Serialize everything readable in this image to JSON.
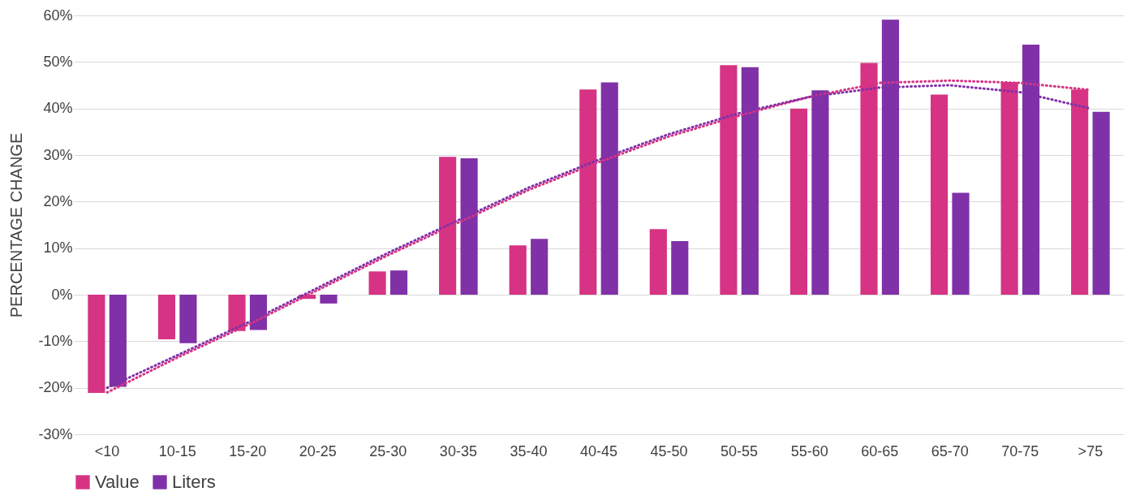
{
  "chart_data": {
    "type": "bar",
    "ylabel": "PERCENTAGE CHANGE",
    "categories": [
      "<10",
      "10-15",
      "15-20",
      "20-25",
      "25-30",
      "30-35",
      "35-40",
      "40-45",
      "45-50",
      "50-55",
      "55-60",
      "60-65",
      "65-70",
      "70-75",
      ">75"
    ],
    "series": [
      {
        "name": "Value",
        "color": "#d63384",
        "values": [
          -21.1,
          -9.6,
          -7.8,
          -0.9,
          5.0,
          29.6,
          10.6,
          44.1,
          14.1,
          49.3,
          40.0,
          49.8,
          43.0,
          45.7,
          44.1
        ]
      },
      {
        "name": "Liters",
        "color": "#8031a7",
        "values": [
          -19.8,
          -10.4,
          -7.6,
          -1.9,
          5.2,
          29.3,
          12.0,
          45.6,
          11.5,
          48.9,
          43.9,
          59.1,
          21.9,
          53.7,
          39.3
        ]
      },
      {
        "type": "line",
        "color": "#d63384",
        "line_style": "dotted",
        "values": [
          -21,
          -13.5,
          -6.5,
          1,
          8.5,
          15.5,
          22.5,
          28.5,
          34,
          38.5,
          42.5,
          45.5,
          46,
          45.5,
          44
        ]
      },
      {
        "type": "line",
        "color": "#8031a7",
        "line_style": "dotted",
        "values": [
          -20,
          -13,
          -6,
          1.5,
          9,
          16,
          23,
          29,
          34.5,
          39,
          42.5,
          44.5,
          45,
          43.5,
          40
        ]
      }
    ],
    "ylim": [
      -30,
      60
    ],
    "yticks": [
      {
        "value": -30,
        "label": "-30%"
      },
      {
        "value": -20,
        "label": "-20%"
      },
      {
        "value": -10,
        "label": "-10%"
      },
      {
        "value": 0,
        "label": "0%"
      },
      {
        "value": 10,
        "label": "10%"
      },
      {
        "value": 20,
        "label": "20%"
      },
      {
        "value": 30,
        "label": "30%"
      },
      {
        "value": 40,
        "label": "40%"
      },
      {
        "value": 50,
        "label": "50%"
      },
      {
        "value": 60,
        "label": "60%"
      }
    ],
    "grid": "y",
    "legend": "bottom"
  }
}
